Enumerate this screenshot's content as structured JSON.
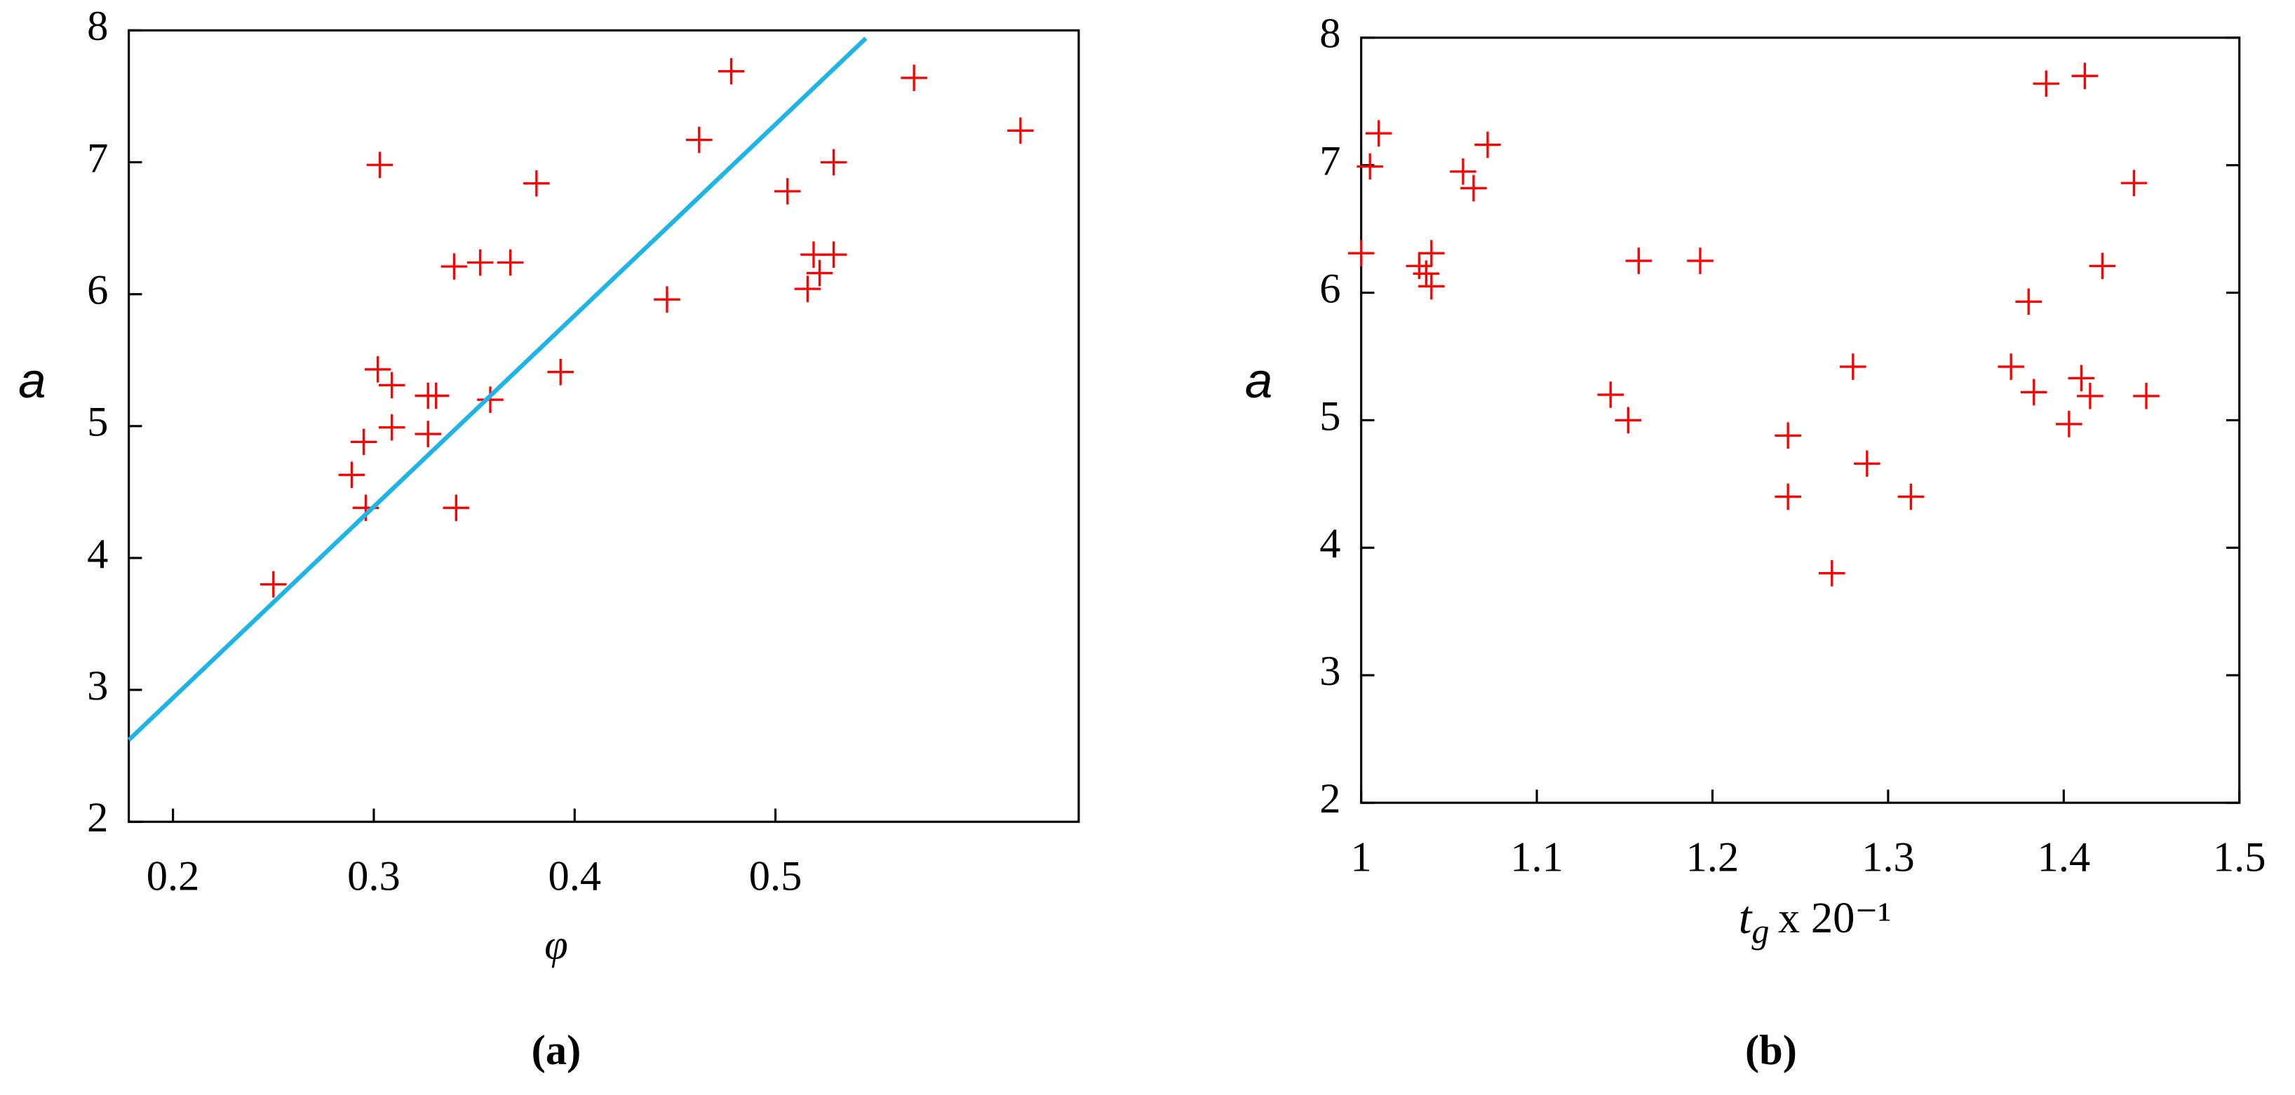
{
  "chart_data": [
    {
      "type": "scatter",
      "y_label": "a",
      "x_label": "φ",
      "panel_label": "(a)",
      "xlim": [
        0.178,
        0.651
      ],
      "xticks": [
        0.2,
        0.3,
        0.4,
        0.5
      ],
      "ylim": [
        2,
        8
      ],
      "yticks": [
        2,
        3,
        4,
        5,
        6,
        7,
        8
      ],
      "series": [
        {
          "type": "scatter",
          "color": "#ff0000",
          "x": [
            0.25,
            0.289,
            0.295,
            0.296,
            0.303,
            0.302,
            0.309,
            0.309,
            0.327,
            0.327,
            0.331,
            0.34,
            0.341,
            0.353,
            0.358,
            0.368,
            0.381,
            0.393,
            0.446,
            0.462,
            0.478,
            0.506,
            0.516,
            0.519,
            0.522,
            0.529,
            0.529,
            0.569,
            0.622
          ],
          "values": [
            3.8,
            4.63,
            4.88,
            4.38,
            6.98,
            5.43,
            5.31,
            4.99,
            4.94,
            5.23,
            5.23,
            6.21,
            4.38,
            6.24,
            5.2,
            6.24,
            6.84,
            5.41,
            5.96,
            7.17,
            7.69,
            6.78,
            6.04,
            6.3,
            6.16,
            7.0,
            6.3,
            7.64,
            7.24
          ]
        },
        {
          "type": "line",
          "color": "#1fb4e6",
          "x": [
            0.178,
            0.545
          ],
          "values": [
            2.62,
            7.94
          ]
        }
      ]
    },
    {
      "type": "scatter",
      "y_label": "a",
      "x_label": {
        "main": "t",
        "sub": "g",
        "rest": "x 20⁻¹"
      },
      "panel_label": "(b)",
      "xlim": [
        1,
        1.5
      ],
      "xticks": [
        1,
        1.1,
        1.2,
        1.3,
        1.4,
        1.5
      ],
      "ylim": [
        2,
        8
      ],
      "yticks": [
        2,
        3,
        4,
        5,
        6,
        7,
        8
      ],
      "series": [
        {
          "type": "scatter",
          "color": "#ff0000",
          "x": [
            1.0,
            1.005,
            1.01,
            1.033,
            1.04,
            1.04,
            1.037,
            1.058,
            1.064,
            1.072,
            1.142,
            1.152,
            1.158,
            1.193,
            1.243,
            1.243,
            1.268,
            1.28,
            1.288,
            1.313,
            1.37,
            1.38,
            1.383,
            1.39,
            1.403,
            1.412,
            1.41,
            1.415,
            1.422,
            1.44,
            1.447
          ],
          "values": [
            6.31,
            6.99,
            7.25,
            6.21,
            6.31,
            6.05,
            6.15,
            6.95,
            6.82,
            7.16,
            5.2,
            5.0,
            6.25,
            6.25,
            4.88,
            4.4,
            3.8,
            5.42,
            4.66,
            4.4,
            5.42,
            5.93,
            5.22,
            7.64,
            4.97,
            7.7,
            5.33,
            5.19,
            6.21,
            6.86,
            5.19
          ]
        }
      ]
    }
  ]
}
